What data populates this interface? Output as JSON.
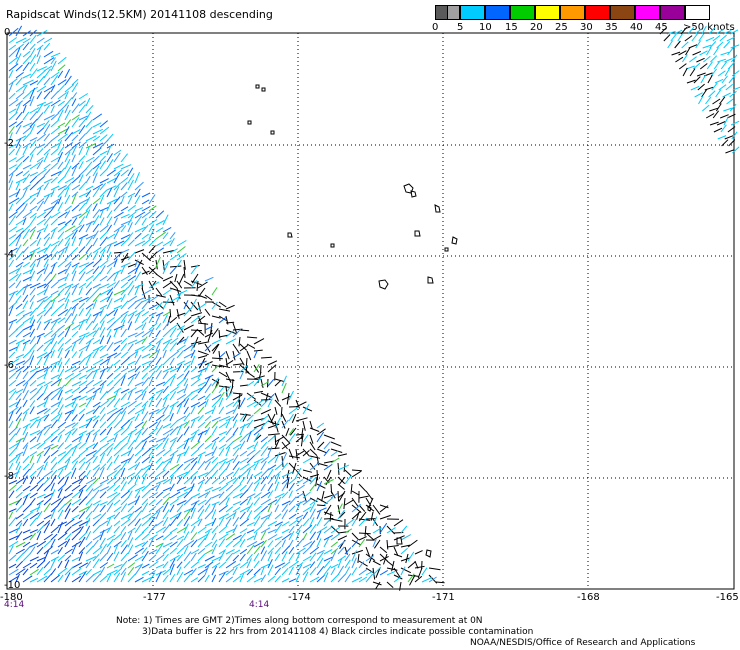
{
  "title": "Rapidscat Winds(12.5KM) 20141108 descending",
  "legend": {
    "ticks": [
      "0",
      "5",
      "10",
      "15",
      "20",
      "25",
      "30",
      "35",
      "40",
      "45",
      ">50 knots"
    ],
    "colors": [
      "#5a5a5a",
      "#a0a0a0",
      "#00ccff",
      "#0066ff",
      "#00cc00",
      "#ffff00",
      "#ff9900",
      "#ff0000",
      "#8b4513",
      "#ff00ff",
      "#990099",
      "#ffffff"
    ]
  },
  "latitude_labels": [
    "0",
    "-2",
    "-4",
    "-6",
    "-8",
    "-10"
  ],
  "longitude_labels": [
    "-180",
    "-177",
    "-174",
    "-171",
    "-168",
    "-165"
  ],
  "time_labels": [
    "4:14",
    "4:14"
  ],
  "notes": [
    "Note: 1) Times are GMT 2)Times along bottom correspond to measurement at 0N",
    "3)Data buffer is 22 hrs from 20141108 4) Black circles indicate possible contamination",
    "NOAA/NESDIS/Office of Research and Applications"
  ]
}
